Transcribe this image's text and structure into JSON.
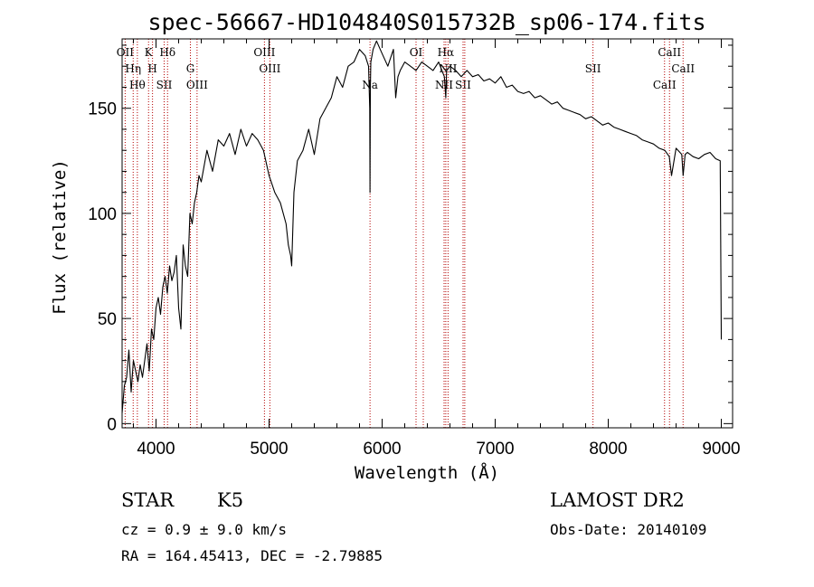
{
  "chart_data": {
    "type": "line",
    "title": "spec-56667-HD104840S015732B_sp06-174.fits",
    "xlabel": "Wavelength (Å)",
    "ylabel": "Flux (relative)",
    "xlim": [
      3700,
      9100
    ],
    "ylim": [
      -2,
      183
    ],
    "xticks": [
      4000,
      5000,
      6000,
      7000,
      8000,
      9000
    ],
    "yticks": [
      0,
      50,
      100,
      150
    ],
    "grid": false,
    "series": [
      {
        "x": [
          3700,
          3720,
          3740,
          3760,
          3780,
          3800,
          3820,
          3840,
          3860,
          3880,
          3900,
          3920,
          3940,
          3960,
          3980,
          4000,
          4020,
          4040,
          4060,
          4080,
          4100,
          4120,
          4140,
          4160,
          4180,
          4200,
          4220,
          4240,
          4260,
          4280,
          4300,
          4320,
          4340,
          4360,
          4380,
          4400,
          4450,
          4500,
          4550,
          4600,
          4650,
          4700,
          4750,
          4800,
          4850,
          4900,
          4950,
          5000,
          5050,
          5100,
          5150,
          5170,
          5190,
          5200,
          5220,
          5250,
          5300,
          5350,
          5400,
          5450,
          5500,
          5550,
          5600,
          5650,
          5700,
          5750,
          5800,
          5850,
          5880,
          5890,
          5893,
          5896,
          5900,
          5920,
          5950,
          6000,
          6050,
          6100,
          6120,
          6140,
          6160,
          6200,
          6250,
          6300,
          6350,
          6400,
          6450,
          6500,
          6550,
          6563,
          6570,
          6600,
          6650,
          6700,
          6750,
          6800,
          6850,
          6900,
          6950,
          7000,
          7050,
          7100,
          7150,
          7200,
          7250,
          7300,
          7350,
          7400,
          7450,
          7500,
          7550,
          7600,
          7650,
          7700,
          7750,
          7800,
          7850,
          7900,
          7950,
          8000,
          8050,
          8100,
          8150,
          8200,
          8250,
          8300,
          8350,
          8400,
          8450,
          8500,
          8540,
          8560,
          8600,
          8650,
          8662,
          8680,
          8700,
          8750,
          8800,
          8850,
          8900,
          8950,
          8990,
          9000
        ],
        "y": [
          5,
          18,
          22,
          35,
          15,
          30,
          25,
          20,
          28,
          22,
          30,
          38,
          25,
          45,
          40,
          55,
          60,
          52,
          65,
          70,
          62,
          75,
          68,
          72,
          80,
          55,
          45,
          85,
          75,
          70,
          100,
          95,
          105,
          110,
          118,
          115,
          130,
          120,
          135,
          132,
          138,
          128,
          140,
          132,
          138,
          135,
          130,
          118,
          110,
          105,
          95,
          85,
          80,
          75,
          110,
          125,
          130,
          140,
          128,
          145,
          150,
          155,
          165,
          160,
          170,
          172,
          178,
          175,
          170,
          150,
          110,
          160,
          172,
          178,
          182,
          176,
          170,
          178,
          155,
          165,
          168,
          172,
          170,
          168,
          172,
          170,
          168,
          172,
          165,
          155,
          168,
          170,
          168,
          165,
          168,
          165,
          166,
          163,
          164,
          162,
          165,
          160,
          161,
          158,
          157,
          158,
          155,
          156,
          154,
          152,
          153,
          150,
          149,
          148,
          147,
          145,
          146,
          144,
          142,
          143,
          141,
          140,
          139,
          138,
          137,
          135,
          134,
          133,
          131,
          130,
          127,
          118,
          131,
          128,
          118,
          128,
          129,
          127,
          126,
          128,
          129,
          126,
          125,
          40
        ]
      }
    ],
    "line_markers": [
      {
        "wavelength": 3727,
        "label": "OII"
      },
      {
        "wavelength": 3798,
        "label": "Hη"
      },
      {
        "wavelength": 3835,
        "label": "Hθ"
      },
      {
        "wavelength": 3934,
        "label": "K"
      },
      {
        "wavelength": 3969,
        "label": "H"
      },
      {
        "wavelength": 4072,
        "label": "SII"
      },
      {
        "wavelength": 4102,
        "label": "Hδ"
      },
      {
        "wavelength": 4304,
        "label": "G"
      },
      {
        "wavelength": 4363,
        "label": "OIII"
      },
      {
        "wavelength": 4959,
        "label": "OIII"
      },
      {
        "wavelength": 5007,
        "label": "OIII"
      },
      {
        "wavelength": 5893,
        "label": "Na"
      },
      {
        "wavelength": 6300,
        "label": "OI"
      },
      {
        "wavelength": 6364,
        "label": ""
      },
      {
        "wavelength": 6548,
        "label": "NII"
      },
      {
        "wavelength": 6563,
        "label": "Hα"
      },
      {
        "wavelength": 6583,
        "label": "NII"
      },
      {
        "wavelength": 6716,
        "label": "SII"
      },
      {
        "wavelength": 6731,
        "label": ""
      },
      {
        "wavelength": 7865,
        "label": "SII"
      },
      {
        "wavelength": 8498,
        "label": "CaII"
      },
      {
        "wavelength": 8542,
        "label": "CaII"
      },
      {
        "wavelength": 8662,
        "label": "CaII"
      }
    ]
  },
  "info": {
    "class": "STAR",
    "subclass": "K5",
    "survey": "LAMOST DR2",
    "cz": "cz = 0.9 ± 9.0 km/s",
    "obs_date": "Obs-Date: 20140109",
    "coords": "RA = 164.45413, DEC =  -2.79885"
  },
  "colors": {
    "axis": "#000000",
    "markers": "#b40000"
  }
}
